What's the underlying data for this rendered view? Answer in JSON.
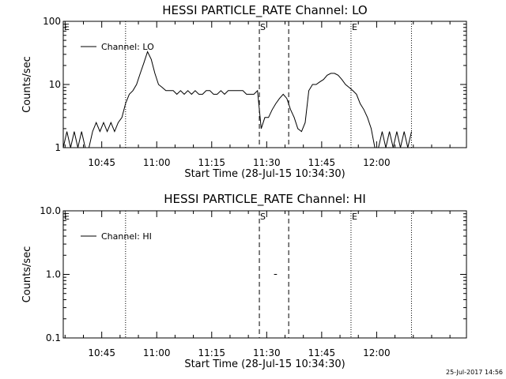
{
  "footer_timestamp": "25-Jul-2017 14:56",
  "chart_data": [
    {
      "type": "line",
      "title": "HESSI PARTICLE_RATE Channel: LO",
      "xlabel": "Start Time (28-Jul-15 10:34:30)",
      "ylabel": "Counts/sec",
      "yscale": "log",
      "ylim": [
        1,
        100
      ],
      "xlim_minutes_from_start": [
        0,
        110
      ],
      "x_tick_labels": [
        "10:45",
        "11:00",
        "11:15",
        "11:30",
        "11:45",
        "12:00"
      ],
      "x_tick_minutes_from_start": [
        10.5,
        25.5,
        40.5,
        55.5,
        70.5,
        85.5
      ],
      "y_tick_labels": [
        "1",
        "10",
        "100"
      ],
      "y_tick_values": [
        1,
        10,
        100
      ],
      "legend": {
        "label": "Channel: LO",
        "placement": "top-left"
      },
      "annotations": [
        {
          "label": "E",
          "minute": 0,
          "style": "dotted"
        },
        {
          "label": "",
          "minute": 17,
          "style": "dotted"
        },
        {
          "label": "S",
          "minute": 53.5,
          "style": "dashed"
        },
        {
          "label": "",
          "minute": 61.5,
          "style": "dashed"
        },
        {
          "label": "E",
          "minute": 78.5,
          "style": "dotted"
        },
        {
          "label": "",
          "minute": 95,
          "style": "dotted"
        }
      ],
      "series": [
        {
          "x": [
            0,
            1,
            2,
            3,
            4,
            5,
            6,
            7,
            8,
            9,
            10,
            11,
            12,
            13,
            14,
            15,
            16,
            17,
            18,
            19,
            20,
            21,
            22,
            23,
            24,
            25,
            26,
            27,
            28,
            29,
            30,
            31,
            32,
            33,
            34,
            35,
            36,
            37,
            38,
            39,
            40,
            41,
            42,
            43,
            44,
            45,
            46,
            47,
            48,
            49,
            50,
            51,
            52,
            53,
            54,
            55,
            56,
            57,
            58,
            59,
            60,
            61,
            62,
            63,
            64,
            65,
            66,
            67,
            68,
            69,
            70,
            71,
            72,
            73,
            74,
            75,
            76,
            77,
            78,
            79,
            80,
            81,
            82,
            83,
            84,
            85,
            86,
            87,
            88,
            89,
            90,
            91,
            92,
            93,
            94,
            95
          ],
          "values": [
            1,
            1.8,
            1,
            1.8,
            1,
            1.8,
            1,
            1,
            1.8,
            2.5,
            1.8,
            2.5,
            1.8,
            2.5,
            1.8,
            2.5,
            3,
            5,
            7,
            8,
            10,
            15,
            22,
            33,
            25,
            15,
            10,
            9,
            8,
            8,
            8,
            7,
            8,
            7,
            8,
            7,
            8,
            7,
            7,
            8,
            8,
            7,
            7,
            8,
            7,
            8,
            8,
            8,
            8,
            8,
            7,
            7,
            7,
            8,
            2,
            3,
            3,
            4,
            5,
            6,
            7,
            6,
            4,
            3,
            2,
            1.8,
            2.5,
            8,
            10,
            10,
            11,
            12,
            14,
            15,
            15,
            14,
            12,
            10,
            9,
            8,
            7,
            5,
            4,
            3,
            2,
            1,
            1,
            1.8,
            1,
            1.8,
            1,
            1.8,
            1,
            1.8,
            1,
            1.8
          ]
        }
      ]
    },
    {
      "type": "line",
      "title": "HESSI PARTICLE_RATE Channel: HI",
      "xlabel": "Start Time (28-Jul-15 10:34:30)",
      "ylabel": "Counts/sec",
      "yscale": "log",
      "ylim": [
        0.1,
        10
      ],
      "xlim_minutes_from_start": [
        0,
        110
      ],
      "x_tick_labels": [
        "10:45",
        "11:00",
        "11:15",
        "11:30",
        "11:45",
        "12:00"
      ],
      "x_tick_minutes_from_start": [
        10.5,
        25.5,
        40.5,
        55.5,
        70.5,
        85.5
      ],
      "y_tick_labels": [
        "0.1",
        "1.0",
        "10.0"
      ],
      "y_tick_values": [
        0.1,
        1,
        10
      ],
      "legend": {
        "label": "Channel: HI",
        "placement": "top-left"
      },
      "annotations": [
        {
          "label": "E",
          "minute": 0,
          "style": "dotted"
        },
        {
          "label": "",
          "minute": 17,
          "style": "dotted"
        },
        {
          "label": "S",
          "minute": 53.5,
          "style": "dashed"
        },
        {
          "label": "",
          "minute": 61.5,
          "style": "dashed"
        },
        {
          "label": "E",
          "minute": 78.5,
          "style": "dotted"
        },
        {
          "label": "",
          "minute": 95,
          "style": "dotted"
        }
      ],
      "series": [
        {
          "x": [
            57.5,
            58.3
          ],
          "values": [
            1,
            1
          ]
        }
      ]
    }
  ]
}
